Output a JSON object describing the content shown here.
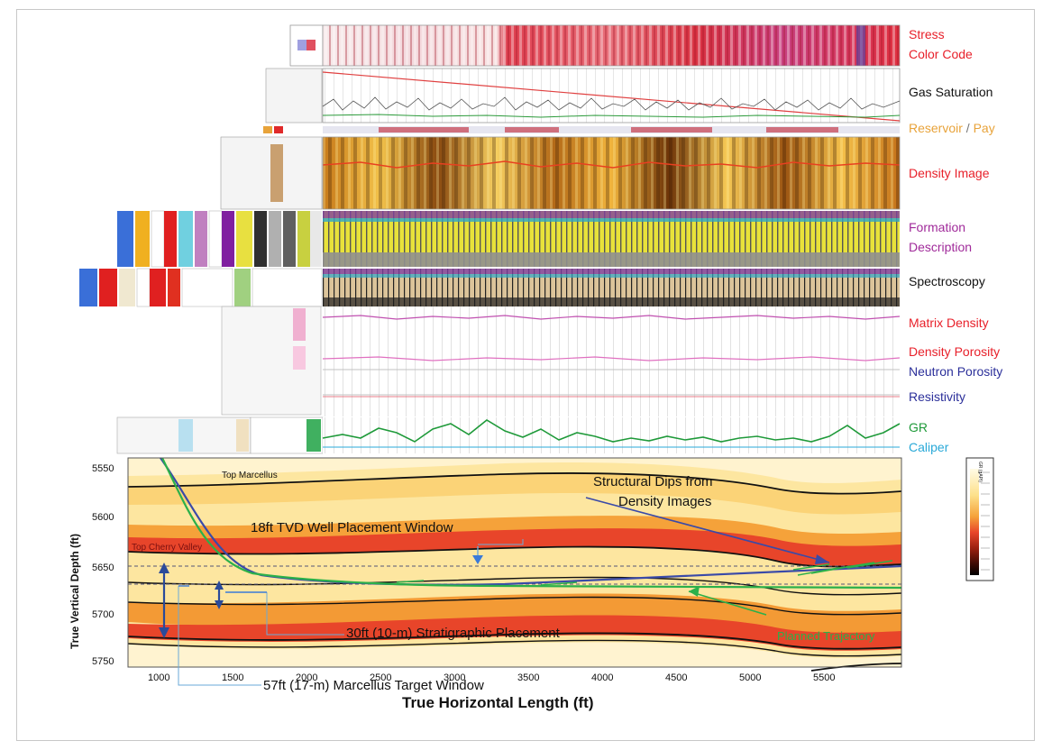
{
  "track_labels": {
    "stress_line1": "Stress",
    "stress_line2": "Color Code",
    "gas_saturation": "Gas Saturation",
    "reservoir": "Reservoir",
    "reservoir_sep": "/",
    "pay": "Pay",
    "density_image": "Density Image",
    "formation_line1": "Formation",
    "formation_line2": "Description",
    "spectroscopy": "Spectroscopy",
    "matrix_density": "Matrix  Density",
    "density_porosity": "Density Porosity",
    "neutron_porosity": "Neutron Porosity",
    "resistivity": "Resistivity",
    "gr": "GR",
    "caliper": "Caliper"
  },
  "colors": {
    "stress": "#e8202a",
    "black": "#111111",
    "reservoir": "#e8a33a",
    "formation": "#a02a9a",
    "neutron": "#2b2f9a",
    "gr": "#1f9a3a",
    "caliper": "#29a9d8",
    "planned": "#2bb04a"
  },
  "section": {
    "ylabel": "True Vertical Depth (ft)",
    "xlabel": "True Horizontal Length (ft)",
    "x_ticks": [
      "1000",
      "1500",
      "2000",
      "2500",
      "3000",
      "3500",
      "4000",
      "4500",
      "5000",
      "5500"
    ],
    "y_ticks": [
      "5550",
      "5600",
      "5650",
      "5700",
      "5750"
    ],
    "top_marcellus": "Top  Marcellus",
    "top_cherry_valley": "Top Cherry Valley",
    "structural_dips_line1": "Structural Dips from",
    "structural_dips_line2": "Density Images",
    "placement_window": "18ft TVD Well Placement Window",
    "stratigraphic": "30ft (10-m) Stratigraphic Placement",
    "target_window": "57ft (17-m) Marcellus Target Window",
    "planned_trajectory": "Planned Trajectory",
    "legend_title": "GR (gAPI)"
  }
}
